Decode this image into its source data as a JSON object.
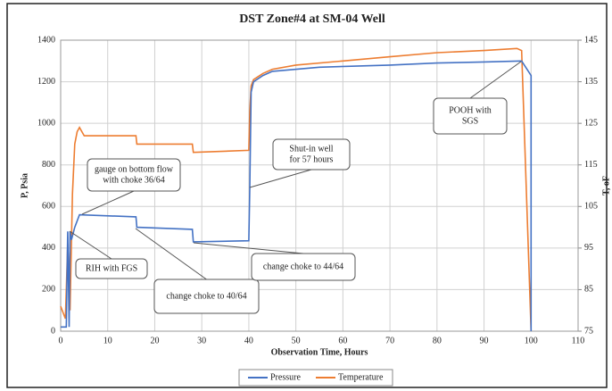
{
  "chart_data": {
    "type": "line",
    "title": "DST Zone#4 at SM-04 Well",
    "x_label": "Observation Time, Hours",
    "y_label": "P, Psia",
    "y2_label": "T, oF",
    "xlim": [
      0,
      110
    ],
    "xticks": [
      0,
      10,
      20,
      30,
      40,
      50,
      60,
      70,
      80,
      90,
      100,
      110
    ],
    "ylim": [
      0,
      1400
    ],
    "yticks": [
      0,
      200,
      400,
      600,
      800,
      1000,
      1200,
      1400
    ],
    "y2lim": [
      75,
      145
    ],
    "y2ticks": [
      75,
      85,
      95,
      105,
      115,
      125,
      135,
      145
    ],
    "grid": true,
    "legend": "bottom",
    "series": [
      {
        "name": "Pressure",
        "color": "#4472c4",
        "x": [
          0,
          1.2,
          1.5,
          1.8,
          2,
          2.3,
          3,
          4,
          16,
          16.2,
          28,
          28.2,
          40,
          40.2,
          40.5,
          41,
          43,
          45,
          55,
          70,
          80,
          90,
          98,
          100,
          100
        ],
        "values": [
          20,
          20,
          480,
          20,
          480,
          440,
          500,
          560,
          550,
          500,
          490,
          430,
          435,
          690,
          1150,
          1200,
          1230,
          1250,
          1270,
          1280,
          1290,
          1295,
          1300,
          1230,
          0
        ]
      },
      {
        "name": "Temperature",
        "color": "#ed7d31",
        "axis": "y2",
        "x": [
          0,
          1,
          1.5,
          2,
          2.5,
          3,
          3.5,
          4,
          5,
          16,
          16.2,
          28,
          28.2,
          40,
          40.2,
          40.5,
          41,
          43,
          45,
          50,
          60,
          70,
          80,
          90,
          97,
          98,
          100
        ],
        "values": [
          81,
          78,
          96,
          80,
          108,
          120,
          123,
          124,
          122,
          122,
          120,
          120,
          118,
          118.5,
          128,
          134,
          135.5,
          137,
          138,
          139,
          140,
          141,
          142,
          142.5,
          143,
          142.5,
          75
        ]
      }
    ],
    "annotations": [
      {
        "text": [
          "gauge on bottom flow",
          "with choke 36/64"
        ]
      },
      {
        "text": [
          "RIH with FGS"
        ]
      },
      {
        "text": [
          "change choke to 40/64"
        ]
      },
      {
        "text": [
          "change choke to 44/64"
        ]
      },
      {
        "text": [
          "Shut-in well",
          "for 57 hours"
        ]
      },
      {
        "text": [
          "POOH with",
          "SGS"
        ]
      }
    ]
  }
}
